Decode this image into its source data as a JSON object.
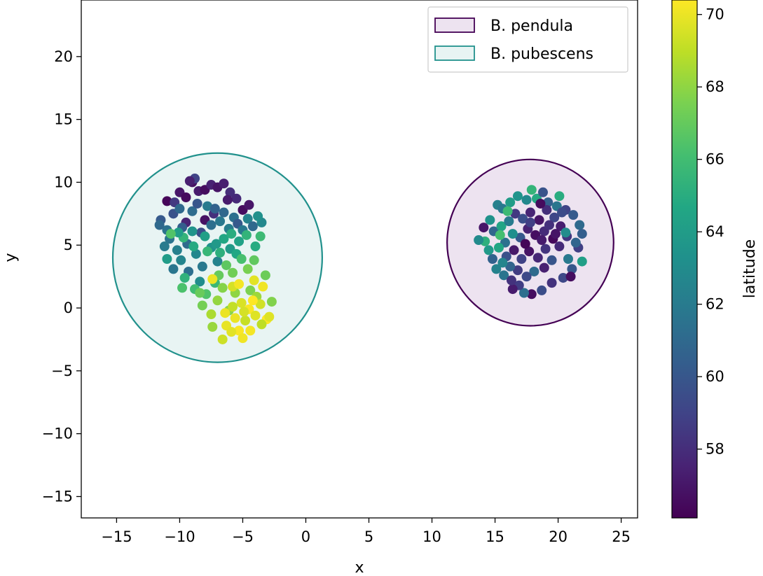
{
  "chart_data": {
    "type": "scatter",
    "title": "",
    "xlabel": "x",
    "ylabel": "y",
    "xlim": [
      -17.8,
      26.3
    ],
    "ylim": [
      -16.7,
      24.5
    ],
    "xticks": [
      -15,
      -10,
      -5,
      0,
      5,
      10,
      15,
      20,
      25
    ],
    "yticks": [
      -15,
      -10,
      -5,
      0,
      5,
      10,
      15,
      20
    ],
    "xtick_labels": [
      "−15",
      "−10",
      "−5",
      "0",
      "5",
      "10",
      "15",
      "20",
      "25"
    ],
    "ytick_labels": [
      "−15",
      "−10",
      "−5",
      "0",
      "5",
      "10",
      "15",
      "20"
    ],
    "grid": false,
    "legend_position": "top-right",
    "legend": [
      {
        "label": "B. pendula",
        "edge_color": "#440154",
        "face_color": "#ede3f0"
      },
      {
        "label": "B. pubescens",
        "edge_color": "#21918c",
        "face_color": "#e8f4f3"
      }
    ],
    "regions": [
      {
        "name": "B. pendula",
        "center": [
          17.8,
          5.2
        ],
        "radius": 6.6,
        "edge_color": "#440154",
        "face_color": "#ede3f0"
      },
      {
        "name": "B. pubescens",
        "center": [
          -7.0,
          4.0
        ],
        "radius": 8.3,
        "edge_color": "#21918c",
        "face_color": "#e8f4f3"
      }
    ],
    "colorbar": {
      "label": "latitude",
      "colormap": "viridis",
      "range": [
        56.1,
        70.4
      ],
      "ticks": [
        58,
        60,
        62,
        64,
        66,
        68,
        70
      ],
      "tick_labels": [
        "58",
        "60",
        "62",
        "64",
        "66",
        "68",
        "70"
      ]
    },
    "series": [
      {
        "name": "B. pubescens",
        "points": [
          [
            -11.0,
            8.5,
            56.3
          ],
          [
            -10.0,
            9.2,
            57.0
          ],
          [
            -9.5,
            8.8,
            56.5
          ],
          [
            -9.0,
            10.0,
            56.8
          ],
          [
            -8.5,
            9.3,
            57.2
          ],
          [
            -8.0,
            9.4,
            56.6
          ],
          [
            -7.5,
            9.8,
            57.5
          ],
          [
            -7.0,
            9.6,
            56.9
          ],
          [
            -6.5,
            9.9,
            57.3
          ],
          [
            -6.0,
            9.2,
            58.0
          ],
          [
            -5.5,
            8.7,
            57.8
          ],
          [
            -5.0,
            7.8,
            56.6
          ],
          [
            -4.5,
            8.2,
            57.0
          ],
          [
            -8.8,
            10.3,
            59.0
          ],
          [
            -9.2,
            10.1,
            57.4
          ],
          [
            -10.4,
            8.4,
            58.5
          ],
          [
            -8.0,
            7.0,
            56.8
          ],
          [
            -9.5,
            6.8,
            57.6
          ],
          [
            -6.2,
            8.6,
            57.2
          ],
          [
            -7.3,
            7.5,
            58.1
          ],
          [
            -11.5,
            7.0,
            60.2
          ],
          [
            -11.0,
            6.2,
            61.5
          ],
          [
            -10.5,
            7.5,
            59.8
          ],
          [
            -10.0,
            7.9,
            61.0
          ],
          [
            -9.8,
            6.4,
            60.4
          ],
          [
            -9.0,
            7.7,
            61.2
          ],
          [
            -8.6,
            8.3,
            60.0
          ],
          [
            -8.3,
            6.0,
            59.5
          ],
          [
            -7.8,
            8.1,
            62.0
          ],
          [
            -7.5,
            6.6,
            61.3
          ],
          [
            -7.2,
            7.9,
            60.6
          ],
          [
            -6.8,
            6.9,
            61.8
          ],
          [
            -6.5,
            7.6,
            60.9
          ],
          [
            -6.1,
            6.3,
            62.2
          ],
          [
            -5.7,
            7.2,
            61.4
          ],
          [
            -5.4,
            6.7,
            60.1
          ],
          [
            -5.0,
            6.2,
            61.9
          ],
          [
            -4.6,
            7.1,
            62.5
          ],
          [
            -4.2,
            6.5,
            61.0
          ],
          [
            -3.5,
            6.8,
            62.8
          ],
          [
            -3.8,
            7.3,
            63.3
          ],
          [
            -10.8,
            5.5,
            61.6
          ],
          [
            -10.2,
            4.6,
            62.3
          ],
          [
            -9.4,
            5.1,
            61.1
          ],
          [
            -11.2,
            4.9,
            62.0
          ],
          [
            -9.9,
            3.8,
            62.6
          ],
          [
            -10.5,
            3.1,
            61.7
          ],
          [
            -9.3,
            2.9,
            61.3
          ],
          [
            -8.7,
            4.3,
            62.7
          ],
          [
            -8.2,
            3.3,
            61.9
          ],
          [
            -8.4,
            2.1,
            63.0
          ],
          [
            -7.5,
            4.8,
            63.4
          ],
          [
            -7.0,
            3.7,
            62.5
          ],
          [
            -11.6,
            6.6,
            61.0
          ],
          [
            -9.0,
            6.1,
            63.5
          ],
          [
            -8.0,
            5.7,
            64.2
          ],
          [
            -7.1,
            5.1,
            63.8
          ],
          [
            -6.5,
            5.5,
            64.6
          ],
          [
            -5.9,
            5.9,
            65.0
          ],
          [
            -5.3,
            5.3,
            64.3
          ],
          [
            -4.7,
            5.8,
            65.4
          ],
          [
            -4.0,
            4.9,
            64.9
          ],
          [
            -3.6,
            5.7,
            65.8
          ],
          [
            -6.8,
            4.4,
            65.2
          ],
          [
            -6.0,
            4.7,
            63.9
          ],
          [
            -5.5,
            4.3,
            64.7
          ],
          [
            -9.7,
            5.6,
            65.5
          ],
          [
            -10.1,
            6.0,
            64.1
          ],
          [
            -8.9,
            4.9,
            64.8
          ],
          [
            -7.8,
            4.5,
            65.6
          ],
          [
            -11.0,
            3.9,
            64.0
          ],
          [
            -10.7,
            5.9,
            66.5
          ],
          [
            -9.6,
            2.4,
            65.3
          ],
          [
            -8.8,
            1.5,
            66.0
          ],
          [
            -7.9,
            1.1,
            66.4
          ],
          [
            -7.2,
            2.0,
            65.7
          ],
          [
            -6.3,
            3.4,
            66.8
          ],
          [
            -5.8,
            2.8,
            67.3
          ],
          [
            -5.1,
            3.9,
            66.2
          ],
          [
            -4.6,
            3.1,
            67.5
          ],
          [
            -4.1,
            3.8,
            66.9
          ],
          [
            -3.2,
            2.6,
            67.2
          ],
          [
            -6.6,
            1.6,
            67.8
          ],
          [
            -5.6,
            1.2,
            68.0
          ],
          [
            -4.4,
            1.4,
            67.6
          ],
          [
            -3.9,
            0.9,
            68.3
          ],
          [
            -7.0,
            0.6,
            68.1
          ],
          [
            -6.1,
            -0.2,
            67.9
          ],
          [
            -8.2,
            0.2,
            67.4
          ],
          [
            -7.5,
            -0.5,
            68.6
          ],
          [
            -7.4,
            -1.5,
            68.2
          ],
          [
            -6.9,
            2.6,
            67.0
          ],
          [
            -2.7,
            0.5,
            67.7
          ],
          [
            -8.4,
            1.2,
            67.1
          ],
          [
            -9.8,
            1.6,
            66.3
          ],
          [
            -7.4,
            2.3,
            70.0
          ],
          [
            -5.8,
            1.7,
            69.5
          ],
          [
            -5.3,
            1.9,
            70.2
          ],
          [
            -4.1,
            2.2,
            69.8
          ],
          [
            -3.4,
            1.7,
            70.1
          ],
          [
            -3.6,
            0.3,
            69.4
          ],
          [
            -4.5,
            -0.1,
            70.3
          ],
          [
            -5.1,
            0.4,
            69.6
          ],
          [
            -5.6,
            -0.8,
            70.0
          ],
          [
            -4.8,
            -1.0,
            69.2
          ],
          [
            -5.3,
            -1.8,
            70.3
          ],
          [
            -6.3,
            -1.4,
            69.9
          ],
          [
            -4.0,
            -0.6,
            69.7
          ],
          [
            -3.1,
            -0.9,
            70.4
          ],
          [
            -5.0,
            -2.4,
            70.1
          ],
          [
            -6.6,
            -2.5,
            69.3
          ],
          [
            -3.5,
            -1.3,
            69.0
          ],
          [
            -4.4,
            -1.8,
            70.2
          ],
          [
            -5.9,
            -1.9,
            69.8
          ],
          [
            -6.4,
            -0.4,
            70.0
          ],
          [
            -4.9,
            -0.3,
            69.5
          ],
          [
            -4.2,
            0.6,
            70.4
          ],
          [
            -2.9,
            -0.7,
            69.7
          ],
          [
            -5.8,
            0.1,
            69.1
          ]
        ]
      },
      {
        "name": "B. pendula",
        "points": [
          [
            15.2,
            8.2,
            62.3
          ],
          [
            15.6,
            7.9,
            61.8
          ],
          [
            16.2,
            8.4,
            64.0
          ],
          [
            16.8,
            8.9,
            63.5
          ],
          [
            17.5,
            8.6,
            62.8
          ],
          [
            17.9,
            9.4,
            65.5
          ],
          [
            18.3,
            8.7,
            64.8
          ],
          [
            18.8,
            9.2,
            59.8
          ],
          [
            19.2,
            8.4,
            60.5
          ],
          [
            20.1,
            8.9,
            65.0
          ],
          [
            20.6,
            7.8,
            59.0
          ],
          [
            21.2,
            7.4,
            60.2
          ],
          [
            21.7,
            6.6,
            61.0
          ],
          [
            21.9,
            5.9,
            60.4
          ],
          [
            21.6,
            4.8,
            58.8
          ],
          [
            21.9,
            3.7,
            64.2
          ],
          [
            21.1,
            3.1,
            60.0
          ],
          [
            20.4,
            2.4,
            59.2
          ],
          [
            19.5,
            2.0,
            58.2
          ],
          [
            18.7,
            1.4,
            59.5
          ],
          [
            17.9,
            1.1,
            56.6
          ],
          [
            17.3,
            1.2,
            61.3
          ],
          [
            16.9,
            1.8,
            58.7
          ],
          [
            16.4,
            1.5,
            57.2
          ],
          [
            15.7,
            2.6,
            61.6
          ],
          [
            15.1,
            3.1,
            62.4
          ],
          [
            14.8,
            3.9,
            60.6
          ],
          [
            14.5,
            4.6,
            63.8
          ],
          [
            14.2,
            5.3,
            65.2
          ],
          [
            13.7,
            5.4,
            62.9
          ],
          [
            14.1,
            6.4,
            57.0
          ],
          [
            14.9,
            6.1,
            60.9
          ],
          [
            15.5,
            6.5,
            64.5
          ],
          [
            16.1,
            6.9,
            62.0
          ],
          [
            16.6,
            7.5,
            58.5
          ],
          [
            17.2,
            7.1,
            59.6
          ],
          [
            17.8,
            7.6,
            57.6
          ],
          [
            18.5,
            7.0,
            56.9
          ],
          [
            19.1,
            7.8,
            58.0
          ],
          [
            19.7,
            7.2,
            59.1
          ],
          [
            20.2,
            6.5,
            57.3
          ],
          [
            20.7,
            5.7,
            58.4
          ],
          [
            20.1,
            4.9,
            57.8
          ],
          [
            19.6,
            5.5,
            56.4
          ],
          [
            18.9,
            6.1,
            57.9
          ],
          [
            18.2,
            5.8,
            56.7
          ],
          [
            17.6,
            6.3,
            57.5
          ],
          [
            17.0,
            5.6,
            60.1
          ],
          [
            16.4,
            5.9,
            63.2
          ],
          [
            15.8,
            5.2,
            61.4
          ],
          [
            15.3,
            4.8,
            64.6
          ],
          [
            15.9,
            4.1,
            59.7
          ],
          [
            16.5,
            4.6,
            57.1
          ],
          [
            17.1,
            3.9,
            58.9
          ],
          [
            17.7,
            4.5,
            56.8
          ],
          [
            18.4,
            4.0,
            57.7
          ],
          [
            19.0,
            4.7,
            58.3
          ],
          [
            19.5,
            3.8,
            59.9
          ],
          [
            18.9,
            3.2,
            57.4
          ],
          [
            18.1,
            2.9,
            61.1
          ],
          [
            17.5,
            2.5,
            59.3
          ],
          [
            16.8,
            3.0,
            58.6
          ],
          [
            16.2,
            3.3,
            60.7
          ],
          [
            15.6,
            3.6,
            62.6
          ],
          [
            20.8,
            3.9,
            61.9
          ],
          [
            21.4,
            5.2,
            60.8
          ],
          [
            20.6,
            6.0,
            63.0
          ],
          [
            19.9,
            8.1,
            61.7
          ],
          [
            18.6,
            8.3,
            56.5
          ],
          [
            16.0,
            7.7,
            65.8
          ],
          [
            15.4,
            5.8,
            66.1
          ],
          [
            14.6,
            7.0,
            63.4
          ],
          [
            17.4,
            5.1,
            56.3
          ],
          [
            18.7,
            5.4,
            57.2
          ],
          [
            19.3,
            6.6,
            58.1
          ],
          [
            20.3,
            7.6,
            59.4
          ],
          [
            21.0,
            2.5,
            56.6
          ],
          [
            16.3,
            2.2,
            58.2
          ],
          [
            17.8,
            6.8,
            58.8
          ],
          [
            19.8,
            5.9,
            56.9
          ]
        ]
      }
    ]
  }
}
